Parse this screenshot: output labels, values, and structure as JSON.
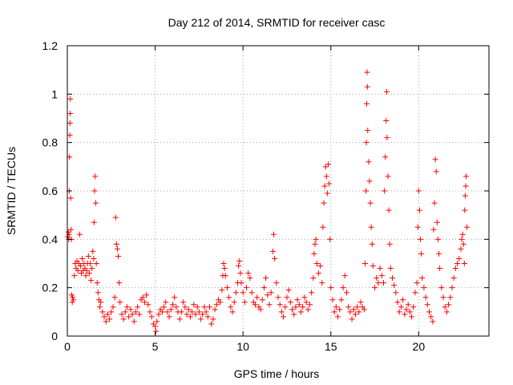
{
  "chart_data": {
    "type": "scatter",
    "title": "Day 212 of 2014, SRMTID for receiver casc",
    "xlabel": "GPS time / hours",
    "ylabel": "SRMTID / TECUs",
    "xlim": [
      0,
      24
    ],
    "ylim": [
      0,
      1.2
    ],
    "grid": true,
    "marker": "+",
    "color": "#ff0000",
    "x_ticks": [
      0,
      5,
      10,
      15,
      20
    ],
    "x_tick_labels": [
      "0",
      "5",
      "10",
      "15",
      "20"
    ],
    "y_ticks": [
      0,
      0.2,
      0.4,
      0.6,
      0.8,
      1.0,
      1.2
    ],
    "y_tick_labels": [
      "0",
      "0.2",
      "0.4",
      "0.6",
      "0.8",
      "1",
      "1.2"
    ],
    "series": [
      {
        "name": "SRMTID",
        "points": [
          [
            0.03,
            0.41
          ],
          [
            0.06,
            0.43
          ],
          [
            0.08,
            0.4
          ],
          [
            0.1,
            0.42
          ],
          [
            0.11,
            0.6
          ],
          [
            0.12,
            0.74
          ],
          [
            0.14,
            0.83
          ],
          [
            0.15,
            0.88
          ],
          [
            0.16,
            0.92
          ],
          [
            0.17,
            0.98
          ],
          [
            0.19,
            0.57
          ],
          [
            0.21,
            0.44
          ],
          [
            0.23,
            0.4
          ],
          [
            0.25,
            0.17
          ],
          [
            0.28,
            0.14
          ],
          [
            0.3,
            0.16
          ],
          [
            0.35,
            0.15
          ],
          [
            0.4,
            0.25
          ],
          [
            0.45,
            0.3
          ],
          [
            0.5,
            0.28
          ],
          [
            0.55,
            0.31
          ],
          [
            0.6,
            0.27
          ],
          [
            0.65,
            0.3
          ],
          [
            0.7,
            0.42
          ],
          [
            0.75,
            0.29
          ],
          [
            0.8,
            0.26
          ],
          [
            0.85,
            0.32
          ],
          [
            0.9,
            0.27
          ],
          [
            0.95,
            0.3
          ],
          [
            1.0,
            0.28
          ],
          [
            1.05,
            0.25
          ],
          [
            1.1,
            0.27
          ],
          [
            1.15,
            0.3
          ],
          [
            1.2,
            0.33
          ],
          [
            1.25,
            0.26
          ],
          [
            1.3,
            0.3
          ],
          [
            1.35,
            0.23
          ],
          [
            1.4,
            0.28
          ],
          [
            1.45,
            0.35
          ],
          [
            1.5,
            0.32
          ],
          [
            1.52,
            0.47
          ],
          [
            1.55,
            0.6
          ],
          [
            1.58,
            0.66
          ],
          [
            1.62,
            0.55
          ],
          [
            1.65,
            0.3
          ],
          [
            1.7,
            0.22
          ],
          [
            1.75,
            0.18
          ],
          [
            1.8,
            0.15
          ],
          [
            1.85,
            0.12
          ],
          [
            1.9,
            0.14
          ],
          [
            2.0,
            0.1
          ],
          [
            2.1,
            0.08
          ],
          [
            2.2,
            0.06
          ],
          [
            2.3,
            0.09
          ],
          [
            2.4,
            0.07
          ],
          [
            2.5,
            0.1
          ],
          [
            2.6,
            0.12
          ],
          [
            2.7,
            0.16
          ],
          [
            2.75,
            0.49
          ],
          [
            2.8,
            0.38
          ],
          [
            2.85,
            0.36
          ],
          [
            2.9,
            0.33
          ],
          [
            2.95,
            0.22
          ],
          [
            3.0,
            0.14
          ],
          [
            3.1,
            0.09
          ],
          [
            3.2,
            0.07
          ],
          [
            3.3,
            0.1
          ],
          [
            3.4,
            0.12
          ],
          [
            3.5,
            0.08
          ],
          [
            3.6,
            0.11
          ],
          [
            3.7,
            0.09
          ],
          [
            3.8,
            0.06
          ],
          [
            3.9,
            0.1
          ],
          [
            4.0,
            0.12
          ],
          [
            4.1,
            0.09
          ],
          [
            4.2,
            0.15
          ],
          [
            4.3,
            0.16
          ],
          [
            4.4,
            0.14
          ],
          [
            4.5,
            0.17
          ],
          [
            4.6,
            0.13
          ],
          [
            4.7,
            0.1
          ],
          [
            4.8,
            0.08
          ],
          [
            4.9,
            0.05
          ],
          [
            5.0,
            0.04
          ],
          [
            5.05,
            0.02
          ],
          [
            5.1,
            0.06
          ],
          [
            5.2,
            0.09
          ],
          [
            5.3,
            0.11
          ],
          [
            5.4,
            0.1
          ],
          [
            5.5,
            0.12
          ],
          [
            5.6,
            0.14
          ],
          [
            5.7,
            0.1
          ],
          [
            5.8,
            0.08
          ],
          [
            5.9,
            0.11
          ],
          [
            6.0,
            0.13
          ],
          [
            6.1,
            0.16
          ],
          [
            6.2,
            0.12
          ],
          [
            6.3,
            0.1
          ],
          [
            6.4,
            0.07
          ],
          [
            6.5,
            0.1
          ],
          [
            6.6,
            0.14
          ],
          [
            6.7,
            0.12
          ],
          [
            6.8,
            0.09
          ],
          [
            6.9,
            0.11
          ],
          [
            7.0,
            0.08
          ],
          [
            7.1,
            0.1
          ],
          [
            7.2,
            0.13
          ],
          [
            7.3,
            0.09
          ],
          [
            7.4,
            0.12
          ],
          [
            7.5,
            0.1
          ],
          [
            7.6,
            0.07
          ],
          [
            7.7,
            0.09
          ],
          [
            7.8,
            0.12
          ],
          [
            7.9,
            0.1
          ],
          [
            8.0,
            0.08
          ],
          [
            8.1,
            0.12
          ],
          [
            8.2,
            0.05
          ],
          [
            8.3,
            0.07
          ],
          [
            8.4,
            0.11
          ],
          [
            8.5,
            0.13
          ],
          [
            8.6,
            0.15
          ],
          [
            8.7,
            0.14
          ],
          [
            8.8,
            0.19
          ],
          [
            8.85,
            0.25
          ],
          [
            8.9,
            0.3
          ],
          [
            8.95,
            0.28
          ],
          [
            9.0,
            0.25
          ],
          [
            9.1,
            0.2
          ],
          [
            9.2,
            0.16
          ],
          [
            9.3,
            0.12
          ],
          [
            9.4,
            0.1
          ],
          [
            9.5,
            0.14
          ],
          [
            9.6,
            0.18
          ],
          [
            9.7,
            0.22
          ],
          [
            9.75,
            0.29
          ],
          [
            9.8,
            0.31
          ],
          [
            9.85,
            0.26
          ],
          [
            9.9,
            0.22
          ],
          [
            10.0,
            0.18
          ],
          [
            10.1,
            0.14
          ],
          [
            10.2,
            0.2
          ],
          [
            10.3,
            0.26
          ],
          [
            10.4,
            0.24
          ],
          [
            10.5,
            0.18
          ],
          [
            10.6,
            0.14
          ],
          [
            10.7,
            0.13
          ],
          [
            10.8,
            0.16
          ],
          [
            10.9,
            0.12
          ],
          [
            11.0,
            0.11
          ],
          [
            11.1,
            0.15
          ],
          [
            11.2,
            0.2
          ],
          [
            11.3,
            0.24
          ],
          [
            11.4,
            0.17
          ],
          [
            11.5,
            0.13
          ],
          [
            11.6,
            0.18
          ],
          [
            11.7,
            0.35
          ],
          [
            11.75,
            0.42
          ],
          [
            11.8,
            0.32
          ],
          [
            11.9,
            0.22
          ],
          [
            12.0,
            0.16
          ],
          [
            12.1,
            0.13
          ],
          [
            12.2,
            0.1
          ],
          [
            12.3,
            0.08
          ],
          [
            12.4,
            0.12
          ],
          [
            12.5,
            0.16
          ],
          [
            12.6,
            0.19
          ],
          [
            12.7,
            0.14
          ],
          [
            12.8,
            0.11
          ],
          [
            12.9,
            0.09
          ],
          [
            13.0,
            0.12
          ],
          [
            13.1,
            0.15
          ],
          [
            13.2,
            0.13
          ],
          [
            13.3,
            0.1
          ],
          [
            13.4,
            0.12
          ],
          [
            13.5,
            0.16
          ],
          [
            13.6,
            0.14
          ],
          [
            13.7,
            0.11
          ],
          [
            13.8,
            0.13
          ],
          [
            13.9,
            0.18
          ],
          [
            14.0,
            0.24
          ],
          [
            14.05,
            0.34
          ],
          [
            14.1,
            0.38
          ],
          [
            14.15,
            0.4
          ],
          [
            14.2,
            0.3
          ],
          [
            14.3,
            0.26
          ],
          [
            14.4,
            0.29
          ],
          [
            14.5,
            0.22
          ],
          [
            14.55,
            0.45
          ],
          [
            14.6,
            0.55
          ],
          [
            14.65,
            0.62
          ],
          [
            14.7,
            0.7
          ],
          [
            14.75,
            0.66
          ],
          [
            14.8,
            0.59
          ],
          [
            14.85,
            0.71
          ],
          [
            14.9,
            0.63
          ],
          [
            14.95,
            0.4
          ],
          [
            15.0,
            0.2
          ],
          [
            15.1,
            0.15
          ],
          [
            15.2,
            0.1
          ],
          [
            15.3,
            0.12
          ],
          [
            15.4,
            0.08
          ],
          [
            15.5,
            0.11
          ],
          [
            15.6,
            0.15
          ],
          [
            15.7,
            0.2
          ],
          [
            15.8,
            0.25
          ],
          [
            15.9,
            0.18
          ],
          [
            16.0,
            0.12
          ],
          [
            16.1,
            0.1
          ],
          [
            16.2,
            0.07
          ],
          [
            16.3,
            0.11
          ],
          [
            16.4,
            0.09
          ],
          [
            16.5,
            0.12
          ],
          [
            16.6,
            0.1
          ],
          [
            16.7,
            0.14
          ],
          [
            16.8,
            0.12
          ],
          [
            16.9,
            0.11
          ],
          [
            16.95,
            0.3
          ],
          [
            17.0,
            0.6
          ],
          [
            17.02,
            0.8
          ],
          [
            17.04,
            0.96
          ],
          [
            17.06,
            1.09
          ],
          [
            17.08,
            1.03
          ],
          [
            17.1,
            0.85
          ],
          [
            17.15,
            0.72
          ],
          [
            17.2,
            0.64
          ],
          [
            17.25,
            0.55
          ],
          [
            17.3,
            0.45
          ],
          [
            17.35,
            0.38
          ],
          [
            17.4,
            0.29
          ],
          [
            17.5,
            0.2
          ],
          [
            17.6,
            0.24
          ],
          [
            17.7,
            0.22
          ],
          [
            17.8,
            0.28
          ],
          [
            17.9,
            0.25
          ],
          [
            18.0,
            0.22
          ],
          [
            18.05,
            0.6
          ],
          [
            18.1,
            0.74
          ],
          [
            18.15,
            0.89
          ],
          [
            18.18,
            1.01
          ],
          [
            18.2,
            0.82
          ],
          [
            18.25,
            0.66
          ],
          [
            18.3,
            0.52
          ],
          [
            18.35,
            0.38
          ],
          [
            18.4,
            0.28
          ],
          [
            18.5,
            0.24
          ],
          [
            18.6,
            0.21
          ],
          [
            18.7,
            0.18
          ],
          [
            18.8,
            0.14
          ],
          [
            18.9,
            0.1
          ],
          [
            19.0,
            0.12
          ],
          [
            19.1,
            0.15
          ],
          [
            19.2,
            0.09
          ],
          [
            19.3,
            0.11
          ],
          [
            19.4,
            0.13
          ],
          [
            19.5,
            0.1
          ],
          [
            19.6,
            0.08
          ],
          [
            19.7,
            0.12
          ],
          [
            19.8,
            0.18
          ],
          [
            19.9,
            0.22
          ],
          [
            19.95,
            0.45
          ],
          [
            20.0,
            0.6
          ],
          [
            20.05,
            0.52
          ],
          [
            20.1,
            0.4
          ],
          [
            20.15,
            0.34
          ],
          [
            20.2,
            0.24
          ],
          [
            20.3,
            0.2
          ],
          [
            20.4,
            0.16
          ],
          [
            20.5,
            0.13
          ],
          [
            20.6,
            0.1
          ],
          [
            20.7,
            0.08
          ],
          [
            20.8,
            0.06
          ],
          [
            20.85,
            0.44
          ],
          [
            20.9,
            0.55
          ],
          [
            20.95,
            0.73
          ],
          [
            21.0,
            0.68
          ],
          [
            21.05,
            0.47
          ],
          [
            21.1,
            0.4
          ],
          [
            21.15,
            0.34
          ],
          [
            21.2,
            0.28
          ],
          [
            21.3,
            0.2
          ],
          [
            21.4,
            0.16
          ],
          [
            21.5,
            0.12
          ],
          [
            21.6,
            0.1
          ],
          [
            21.7,
            0.13
          ],
          [
            21.8,
            0.16
          ],
          [
            21.9,
            0.2
          ],
          [
            22.0,
            0.24
          ],
          [
            22.1,
            0.28
          ],
          [
            22.2,
            0.3
          ],
          [
            22.3,
            0.32
          ],
          [
            22.4,
            0.36
          ],
          [
            22.45,
            0.4
          ],
          [
            22.5,
            0.42
          ],
          [
            22.55,
            0.38
          ],
          [
            22.6,
            0.3
          ],
          [
            22.62,
            0.52
          ],
          [
            22.65,
            0.58
          ],
          [
            22.68,
            0.62
          ],
          [
            22.7,
            0.66
          ],
          [
            22.75,
            0.45
          ]
        ]
      }
    ]
  }
}
